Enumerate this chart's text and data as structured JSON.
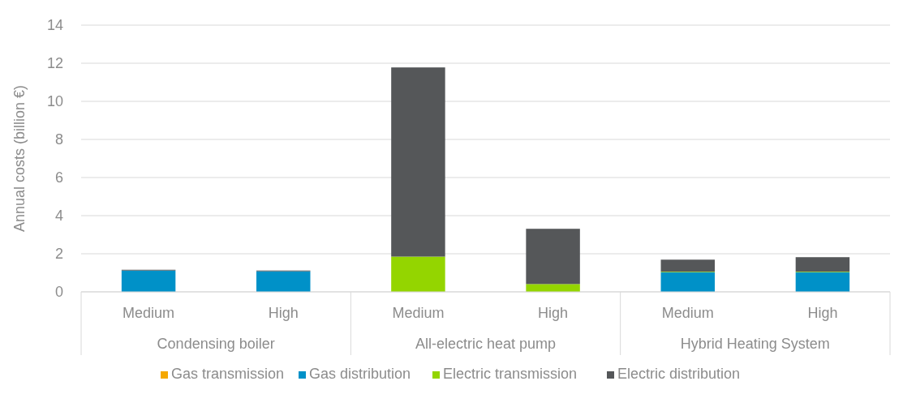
{
  "chart_data": {
    "type": "bar",
    "stacked": true,
    "ylabel": "Annual costs (billion €)",
    "categories": [
      "Medium",
      "High",
      "Medium",
      "High",
      "Medium",
      "High"
    ],
    "annotations": [
      "Condensing boiler",
      "All-electric heat pump",
      "Hybrid Heating System"
    ],
    "series": [
      {
        "name": "Gas transmission",
        "color": "#f5a800",
        "values": [
          0,
          0,
          0,
          0,
          0,
          0
        ]
      },
      {
        "name": "Gas distribution",
        "color": "#0091c8",
        "values": [
          1.12,
          1.08,
          0,
          0,
          1.03,
          1.03
        ]
      },
      {
        "name": "Electric transmission",
        "color": "#94d500",
        "values": [
          0,
          0,
          1.85,
          0.41,
          0.03,
          0.03
        ]
      },
      {
        "name": "Electric distribution",
        "color": "#555759",
        "values": [
          0.04,
          0.04,
          9.93,
          2.9,
          0.63,
          0.76
        ]
      }
    ],
    "ylim": [
      0,
      14
    ],
    "yticks": [
      0,
      2,
      4,
      6,
      8,
      10,
      12,
      14
    ],
    "grid": "y",
    "legend": "bottom"
  }
}
